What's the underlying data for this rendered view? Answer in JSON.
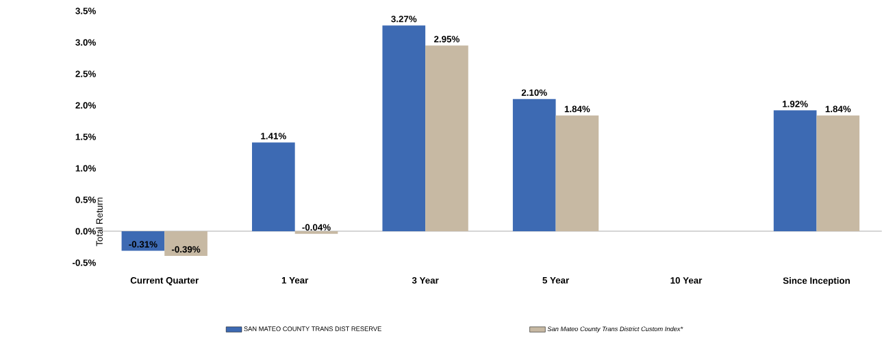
{
  "chart_data": {
    "type": "bar",
    "ylabel": "Total Return",
    "categories": [
      "Current Quarter",
      "1 Year",
      "3 Year",
      "5 Year",
      "10 Year",
      "Since Inception"
    ],
    "series": [
      {
        "name": "SAN MATEO COUNTY TRANS DIST RESERVE",
        "color": "#3d6ab3",
        "values": [
          -0.31,
          1.41,
          3.27,
          2.1,
          null,
          1.92
        ],
        "value_labels": [
          "-0.31%",
          "1.41%",
          "3.27%",
          "2.10%",
          null,
          "1.92%"
        ]
      },
      {
        "name": "San Mateo County Trans District Custom Index*",
        "color": "#c7b9a3",
        "values": [
          -0.39,
          -0.04,
          2.95,
          1.84,
          null,
          1.84
        ],
        "value_labels": [
          "-0.39%",
          "-0.04%",
          "2.95%",
          "1.84%",
          null,
          "1.84%"
        ]
      }
    ],
    "ylim": [
      -0.5,
      3.5
    ],
    "yticks": [
      {
        "value": -0.5,
        "label": "-0.5%"
      },
      {
        "value": 0,
        "label": "0.0%"
      },
      {
        "value": 0.5,
        "label": "0.5%"
      },
      {
        "value": 1,
        "label": "1.0%"
      },
      {
        "value": 1.5,
        "label": "1.5%"
      },
      {
        "value": 2,
        "label": "2.0%"
      },
      {
        "value": 2.5,
        "label": "2.5%"
      },
      {
        "value": 3,
        "label": "3.0%"
      },
      {
        "value": 3.5,
        "label": "3.5%"
      }
    ],
    "legend": "bottom"
  }
}
